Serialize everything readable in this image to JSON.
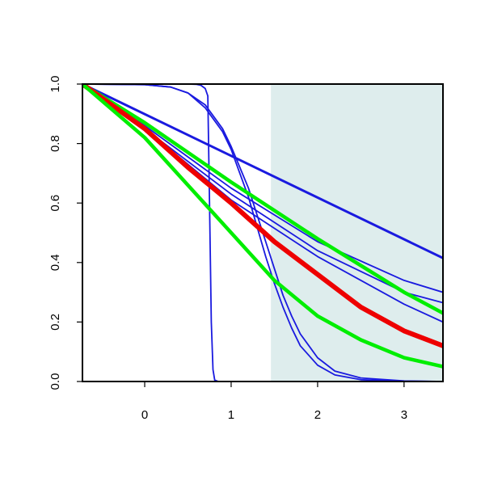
{
  "chart_data": {
    "type": "line",
    "title": "",
    "xlabel": "",
    "ylabel": "",
    "xlim": [
      -0.72,
      3.45
    ],
    "ylim": [
      0.0,
      1.0
    ],
    "grid": false,
    "legend": "none",
    "x_ticks": [
      0,
      1,
      2,
      3
    ],
    "x_tick_labels": [
      "0",
      "1",
      "2",
      "3"
    ],
    "y_ticks": [
      0.0,
      0.2,
      0.4,
      0.6,
      0.8,
      1.0
    ],
    "y_tick_labels": [
      "0.0",
      "0.2",
      "0.4",
      "0.6",
      "0.8",
      "1.0"
    ],
    "shaded_region": {
      "x": [
        1.46,
        3.45
      ],
      "color": "#deeded"
    },
    "series": [
      {
        "color": "#1a1adf",
        "width": 1.8,
        "x": [
          -0.72,
          0.2,
          0.4,
          0.5,
          0.6,
          0.65,
          0.7,
          0.73,
          0.75,
          0.77,
          0.79,
          0.81,
          0.85,
          1.0,
          2.0,
          3.45
        ],
        "values": [
          1.0,
          1.0,
          1.0,
          1.0,
          0.999,
          0.996,
          0.985,
          0.96,
          0.6,
          0.2,
          0.04,
          0.005,
          0.0,
          0.0,
          0.0,
          0.0
        ]
      },
      {
        "color": "#1a1adf",
        "width": 1.8,
        "x": [
          -0.72,
          0.0,
          0.3,
          0.5,
          0.7,
          0.9,
          1.0,
          1.1,
          1.2,
          1.3,
          1.4,
          1.5,
          1.6,
          1.7,
          1.8,
          2.0,
          2.2,
          2.5,
          3.0,
          3.45
        ],
        "values": [
          1.0,
          0.998,
          0.99,
          0.97,
          0.93,
          0.85,
          0.79,
          0.72,
          0.65,
          0.56,
          0.47,
          0.38,
          0.29,
          0.22,
          0.16,
          0.08,
          0.035,
          0.012,
          0.002,
          0.0
        ]
      },
      {
        "color": "#1a1adf",
        "width": 1.8,
        "x": [
          -0.72,
          0.0,
          0.3,
          0.5,
          0.7,
          0.9,
          1.0,
          1.1,
          1.2,
          1.3,
          1.4,
          1.5,
          1.6,
          1.7,
          1.8,
          2.0,
          2.2,
          2.5,
          3.0,
          3.45
        ],
        "values": [
          1.0,
          0.998,
          0.99,
          0.97,
          0.92,
          0.84,
          0.78,
          0.7,
          0.62,
          0.52,
          0.42,
          0.33,
          0.25,
          0.18,
          0.12,
          0.055,
          0.022,
          0.006,
          0.001,
          0.0
        ]
      },
      {
        "color": "#1a1adf",
        "width": 3.0,
        "x": [
          -0.72,
          3.45
        ],
        "values": [
          1.0,
          0.415
        ]
      },
      {
        "color": "#1a1adf",
        "width": 1.8,
        "x": [
          -0.72,
          0.0,
          1.0,
          2.0,
          3.0,
          3.45
        ],
        "values": [
          1.0,
          0.86,
          0.65,
          0.47,
          0.34,
          0.3
        ]
      },
      {
        "color": "#1a1adf",
        "width": 1.8,
        "x": [
          -0.72,
          0.0,
          1.0,
          2.0,
          3.0,
          3.45
        ],
        "values": [
          1.0,
          0.85,
          0.63,
          0.44,
          0.3,
          0.265
        ]
      },
      {
        "color": "#1a1adf",
        "width": 1.8,
        "x": [
          -0.72,
          0.0,
          1.0,
          2.0,
          3.0,
          3.45
        ],
        "values": [
          1.0,
          0.85,
          0.61,
          0.42,
          0.26,
          0.2
        ]
      },
      {
        "color": "#00ee00",
        "width": 4.5,
        "x": [
          -0.72,
          0.0,
          1.0,
          2.0,
          3.0,
          3.45
        ],
        "values": [
          1.0,
          0.87,
          0.67,
          0.48,
          0.3,
          0.23
        ]
      },
      {
        "color": "#ee0000",
        "width": 6.0,
        "x": [
          -0.72,
          0.0,
          0.5,
          1.0,
          1.5,
          2.0,
          2.5,
          3.0,
          3.45
        ],
        "values": [
          1.0,
          0.85,
          0.72,
          0.6,
          0.47,
          0.36,
          0.25,
          0.17,
          0.12
        ]
      },
      {
        "color": "#00ee00",
        "width": 4.5,
        "x": [
          -0.72,
          0.0,
          0.5,
          1.0,
          1.5,
          2.0,
          2.5,
          3.0,
          3.45
        ],
        "values": [
          1.0,
          0.82,
          0.66,
          0.5,
          0.34,
          0.22,
          0.14,
          0.08,
          0.05
        ]
      }
    ]
  }
}
